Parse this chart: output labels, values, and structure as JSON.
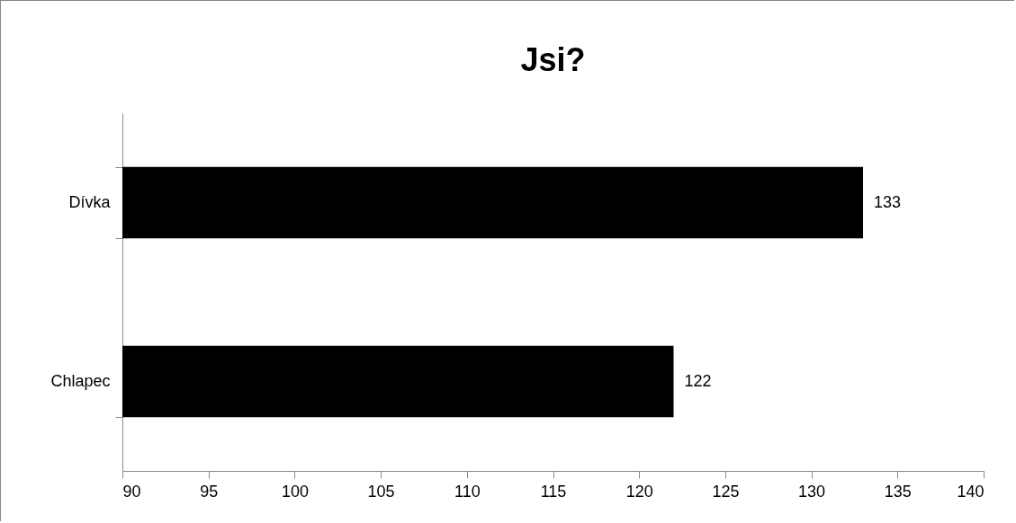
{
  "chart_data": {
    "type": "bar",
    "title": "Jsi?",
    "orientation": "horizontal",
    "categories": [
      "Dívka",
      "Chlapec"
    ],
    "values": [
      133,
      122
    ],
    "color": "#000000",
    "xlim": [
      90,
      140
    ],
    "xticks": [
      90,
      95,
      100,
      105,
      110,
      115,
      120,
      125,
      130,
      135,
      140
    ],
    "grid": false,
    "data_labels": true
  }
}
